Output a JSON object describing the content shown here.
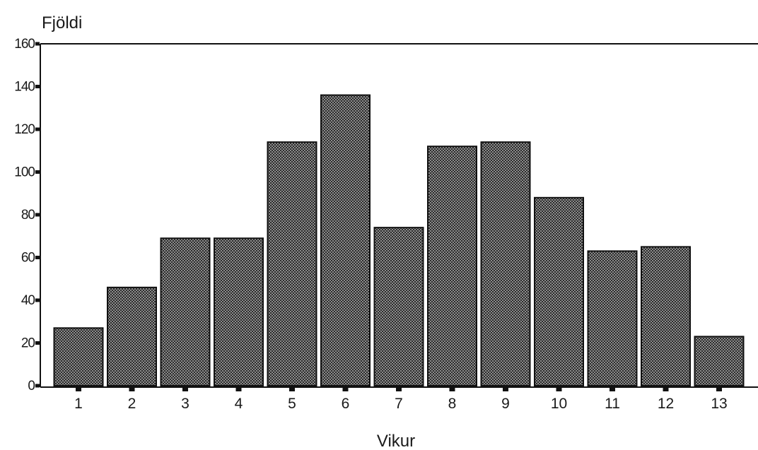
{
  "chart_data": {
    "type": "bar",
    "title": "",
    "ylabel": "Fjöldi",
    "xlabel": "Vikur",
    "categories": [
      "1",
      "2",
      "3",
      "4",
      "5",
      "6",
      "7",
      "8",
      "9",
      "10",
      "11",
      "12",
      "13"
    ],
    "values": [
      27,
      46,
      69,
      69,
      114,
      136,
      74,
      112,
      114,
      88,
      63,
      65,
      23
    ],
    "ylim": [
      0,
      160
    ],
    "yticks": [
      "0",
      "20",
      "40",
      "60",
      "80",
      "100",
      "120",
      "140",
      "160"
    ],
    "grid": false,
    "legend": "none",
    "colors": {
      "bar_fill": "#555555",
      "bar_outline": "#111111",
      "axis": "#111111"
    }
  }
}
